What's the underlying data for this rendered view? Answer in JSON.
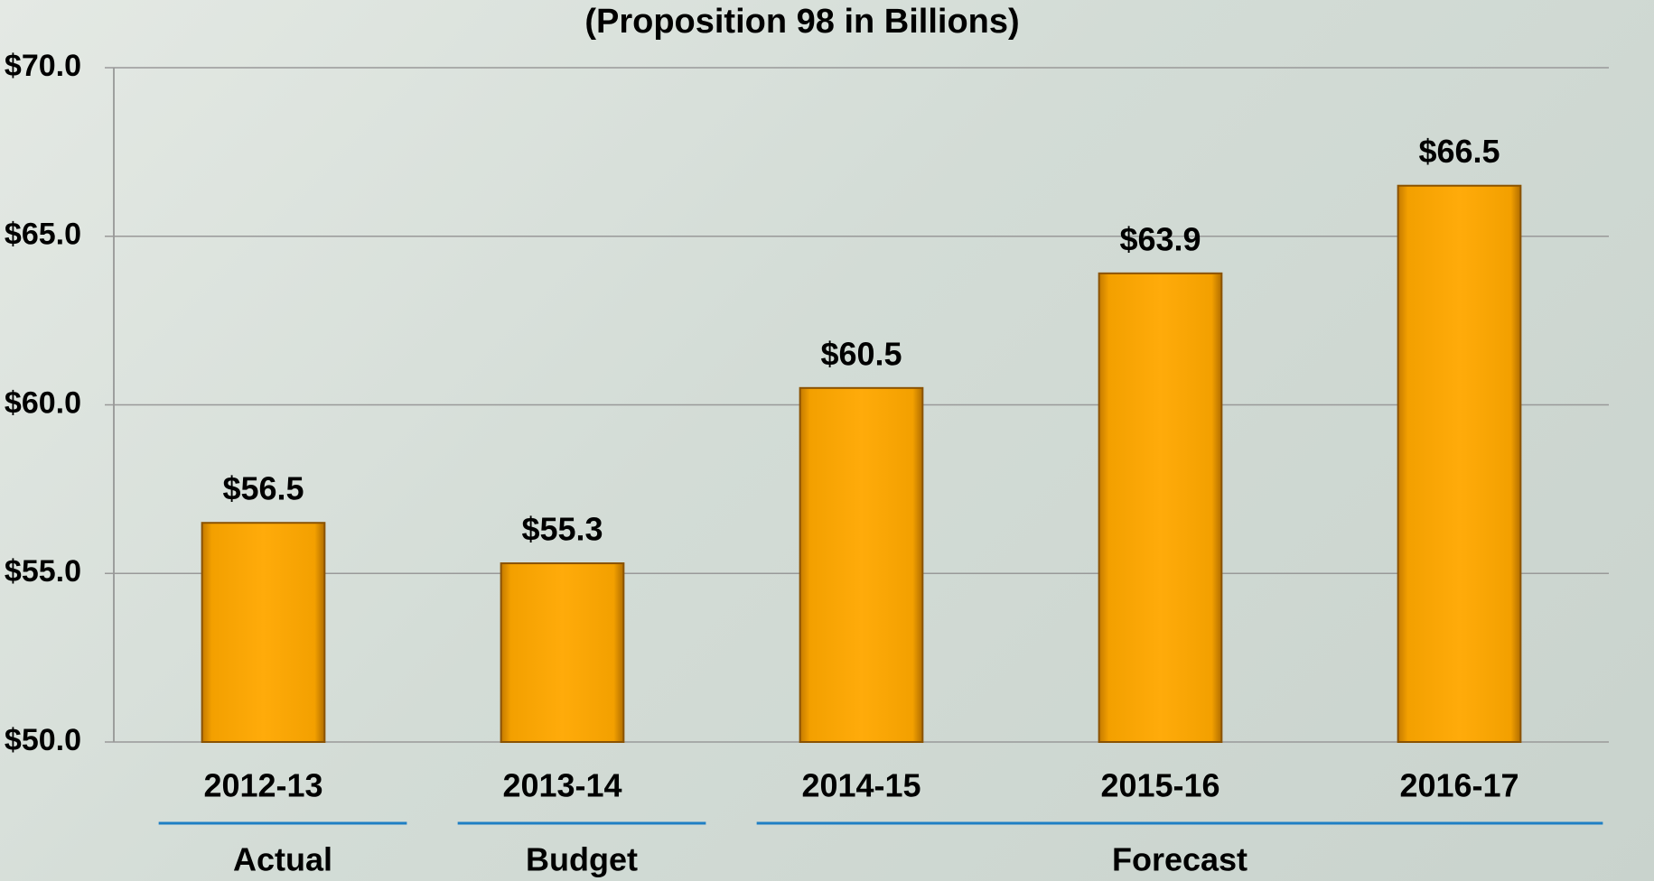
{
  "chart_data": {
    "type": "bar",
    "title": "(Proposition 98 in Billions)",
    "categories": [
      "2012-13",
      "2013-14",
      "2014-15",
      "2015-16",
      "2016-17"
    ],
    "values": [
      56.5,
      55.3,
      60.5,
      63.9,
      66.5
    ],
    "value_labels": [
      "$56.5",
      "$55.3",
      "$60.5",
      "$63.9",
      "$66.5"
    ],
    "color": "#f6a300",
    "ylim": [
      50,
      70
    ],
    "yticks": [
      {
        "value": 50,
        "label": "$50.0"
      },
      {
        "value": 55,
        "label": "$55.0"
      },
      {
        "value": 60,
        "label": "$60.0"
      },
      {
        "value": 65,
        "label": "$65.0"
      },
      {
        "value": 70,
        "label": "$70.0"
      }
    ],
    "grid": true,
    "groups": [
      {
        "label": "Actual",
        "count": 1
      },
      {
        "label": "Budget",
        "count": 1
      },
      {
        "label": "Forecast",
        "count": 3
      }
    ]
  }
}
